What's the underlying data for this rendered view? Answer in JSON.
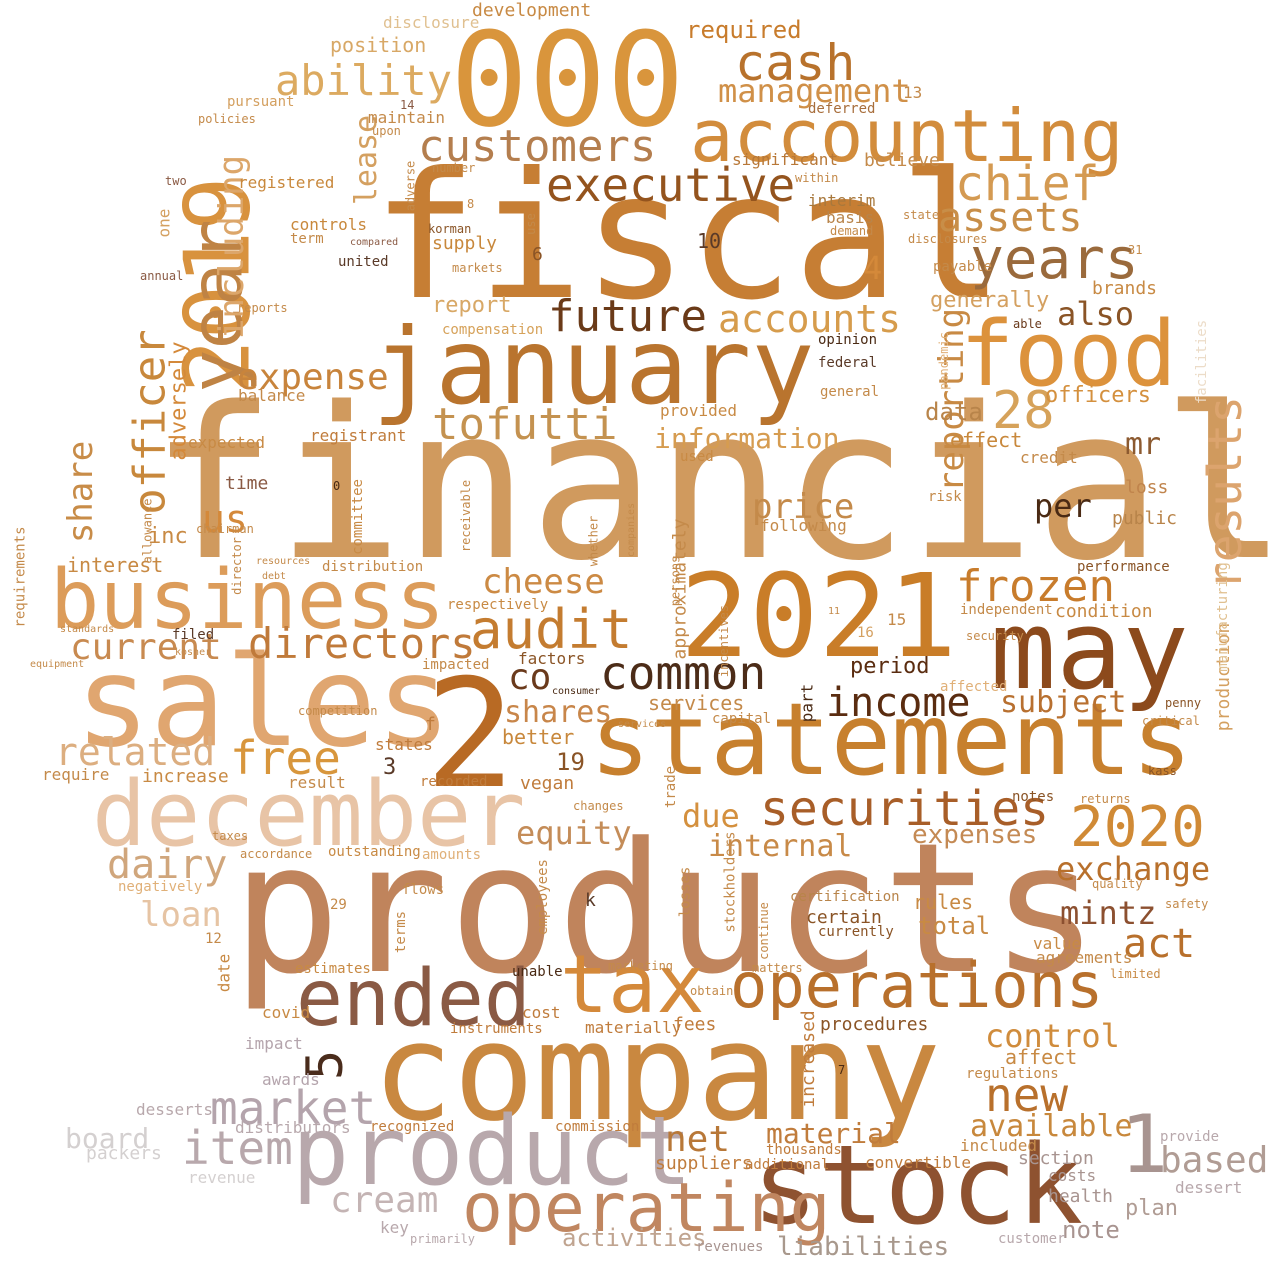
{
  "background_color": "#ffffff",
  "palette": [
    "#d4893a",
    "#c77a32",
    "#b8682a",
    "#8a4e22",
    "#5c2e14",
    "#e8c0a0",
    "#b8a8a8",
    "#d8d8d8"
  ],
  "words": [
    {
      "text": "financial",
      "color": "#d09a5e"
    },
    {
      "text": "products",
      "color": "#c0845c"
    },
    {
      "text": "fiscal",
      "color": "#c67e34"
    },
    {
      "text": "company",
      "color": "#c98840"
    },
    {
      "text": "000",
      "color": "#d9953c"
    },
    {
      "text": "2",
      "color": "#b86a24"
    },
    {
      "text": "statements",
      "color": "#c7802e"
    },
    {
      "text": "2021",
      "color": "#c97d28"
    },
    {
      "text": "sales",
      "color": "#e0a670"
    },
    {
      "text": "january",
      "color": "#b9742e"
    },
    {
      "text": "product",
      "color": "#b8a8ac"
    },
    {
      "text": "stock",
      "color": "#8e5230"
    },
    {
      "text": "may",
      "color": "#8c4a1c"
    },
    {
      "text": "december",
      "color": "#e8c4a6"
    },
    {
      "text": "business",
      "color": "#dc9c5a"
    },
    {
      "text": "2019",
      "color": "#d8923e"
    },
    {
      "text": "food",
      "color": "#dc923c"
    },
    {
      "text": "accounting",
      "color": "#d28c3c"
    },
    {
      "text": "ended",
      "color": "#8a5a44"
    },
    {
      "text": "operations",
      "color": "#b8702c"
    },
    {
      "text": "tax",
      "color": "#d4893a"
    },
    {
      "text": "operating",
      "color": "#c08660"
    },
    {
      "text": "year",
      "color": "#bf8344"
    },
    {
      "text": "1",
      "color": "#a89490"
    },
    {
      "text": "customers",
      "color": "#b47e4e"
    },
    {
      "text": "executive",
      "color": "#94541e"
    },
    {
      "text": "cash",
      "color": "#b8722c"
    },
    {
      "text": "chief",
      "color": "#d49a52"
    },
    {
      "text": "audit",
      "color": "#c47c30"
    },
    {
      "text": "common",
      "color": "#4c2c18"
    },
    {
      "text": "income",
      "color": "#5a2c10"
    },
    {
      "text": "securities",
      "color": "#a85e28"
    },
    {
      "text": "future",
      "color": "#6a3a18"
    },
    {
      "text": "tofutti",
      "color": "#c49250"
    },
    {
      "text": "2020",
      "color": "#d08a36"
    },
    {
      "text": "years",
      "color": "#9a6a3c"
    },
    {
      "text": "assets",
      "color": "#c88e48"
    },
    {
      "text": "frozen",
      "color": "#c87c2c"
    },
    {
      "text": "directors",
      "color": "#c07a3a"
    },
    {
      "text": "results",
      "color": "#dca46e"
    },
    {
      "text": "market",
      "color": "#b4a4ac"
    },
    {
      "text": "item",
      "color": "#b8a8ac"
    },
    {
      "text": "new",
      "color": "#b8702c"
    },
    {
      "text": "28",
      "color": "#d6a25a"
    },
    {
      "text": "5",
      "color": "#4a2c1c"
    },
    {
      "text": "officer",
      "color": "#c8883c"
    },
    {
      "text": "ability",
      "color": "#dcaa60"
    },
    {
      "text": "accounts",
      "color": "#d69c4c"
    },
    {
      "text": "management",
      "color": "#d09048"
    },
    {
      "text": "free",
      "color": "#d8963c"
    },
    {
      "text": "related",
      "color": "#dcae80"
    },
    {
      "text": "current",
      "color": "#c88a50"
    },
    {
      "text": "expense",
      "color": "#c8843c"
    },
    {
      "text": "cheese",
      "color": "#cc8a44"
    },
    {
      "text": "dairy",
      "color": "#d0a67c"
    },
    {
      "text": "loan",
      "color": "#e6c4a4"
    },
    {
      "text": "cream",
      "color": "#c4b4b4"
    },
    {
      "text": "board",
      "color": "#d4d0d0"
    },
    {
      "text": "net",
      "color": "#b87838"
    },
    {
      "text": "based",
      "color": "#b09c94"
    },
    {
      "text": "equity",
      "color": "#c48c58"
    },
    {
      "text": "mintz",
      "color": "#8c5030"
    },
    {
      "text": "exchange",
      "color": "#b8702c"
    },
    {
      "text": "act",
      "color": "#b8702c"
    },
    {
      "text": "control",
      "color": "#d08c3c"
    },
    {
      "text": "available",
      "color": "#c8883c"
    },
    {
      "text": "liabilities",
      "color": "#a8988c"
    },
    {
      "text": "activities",
      "color": "#c0a490"
    },
    {
      "text": "also",
      "color": "#8a5426"
    },
    {
      "text": "reporting",
      "color": "#c88a44"
    },
    {
      "text": "price",
      "color": "#c48a4a"
    },
    {
      "text": "per",
      "color": "#4a2a14"
    },
    {
      "text": "co",
      "color": "#6a3a1c"
    },
    {
      "text": "due",
      "color": "#d4903e"
    },
    {
      "text": "share",
      "color": "#c88c48"
    },
    {
      "text": "including",
      "color": "#dca66a"
    },
    {
      "text": "lease",
      "color": "#d4a060"
    },
    {
      "text": "us",
      "color": "#d4893a"
    },
    {
      "text": "material",
      "color": "#c07c3c"
    },
    {
      "text": "shares",
      "color": "#c8864a"
    },
    {
      "text": "information",
      "color": "#d69c50"
    },
    {
      "text": "subject",
      "color": "#b87030"
    },
    {
      "text": "internal",
      "color": "#c88a48"
    },
    {
      "text": "expenses",
      "color": "#c48a54"
    },
    {
      "text": "data",
      "color": "#b8844a"
    },
    {
      "text": "mr",
      "color": "#8c5a30"
    }
  ],
  "small_words": [
    "development",
    "required",
    "disclosure",
    "position",
    "pursuant",
    "maintain",
    "registered",
    "controls",
    "supply",
    "report",
    "compensation",
    "significant",
    "deferred",
    "interim",
    "basis",
    "believe",
    "generally",
    "brands",
    "officers",
    "effect",
    "credit",
    "loss",
    "public",
    "performance",
    "condition",
    "independent",
    "production",
    "manufacturing",
    "facilities",
    "requirements",
    "interest",
    "inc",
    "adversely",
    "expected",
    "registrant",
    "balance",
    "time",
    "distribution",
    "committee",
    "provided",
    "general",
    "federal",
    "opinion",
    "able",
    "approximately",
    "respectively",
    "factors",
    "period",
    "part",
    "services",
    "capital",
    "states",
    "better",
    "vegan",
    "increase",
    "require",
    "result",
    "recorded",
    "amounts",
    "outstanding",
    "negatively",
    "certification",
    "certain",
    "currently",
    "rules",
    "total",
    "value",
    "agreements",
    "limited",
    "procedures",
    "regulations",
    "affect",
    "included",
    "costs",
    "note",
    "health",
    "plan",
    "section",
    "dessert",
    "provide",
    "customer",
    "revenues",
    "suppliers",
    "additional",
    "convertible",
    "thousands",
    "commission",
    "recognized",
    "key",
    "primarily",
    "desserts",
    "distributors",
    "packers",
    "revenue",
    "awards",
    "impact",
    "covid",
    "estimates",
    "flows",
    "employees",
    "losses",
    "stockholders",
    "continue",
    "increased",
    "matters",
    "unable",
    "cost",
    "instruments",
    "materially",
    "fees",
    "marketing",
    "obtain",
    "terms",
    "date",
    "following",
    "used",
    "trade",
    "changes",
    "notes",
    "returns",
    "quality",
    "safety",
    "kass",
    "penny",
    "critical",
    "security",
    "affected",
    "risk",
    "pandemic",
    "payable",
    "state",
    "disclosures",
    "markets",
    "korman",
    "united",
    "term",
    "one",
    "two",
    "annual",
    "reports",
    "policies",
    "within",
    "demand",
    "use",
    "compared",
    "upon",
    "number",
    "adverse",
    "accordance",
    "taxes",
    "equipment",
    "standards",
    "filed",
    "kosher",
    "impacted",
    "competition",
    "allowance",
    "chairman",
    "director",
    "resources",
    "debt",
    "receivable",
    "whether",
    "companies",
    "persons",
    "incentives",
    "consumer",
    "services",
    "12",
    "29",
    "k",
    "f",
    "0",
    "3",
    "4",
    "8",
    "6",
    "10",
    "13",
    "14",
    "15",
    "16",
    "19",
    "31",
    "7",
    "11"
  ]
}
